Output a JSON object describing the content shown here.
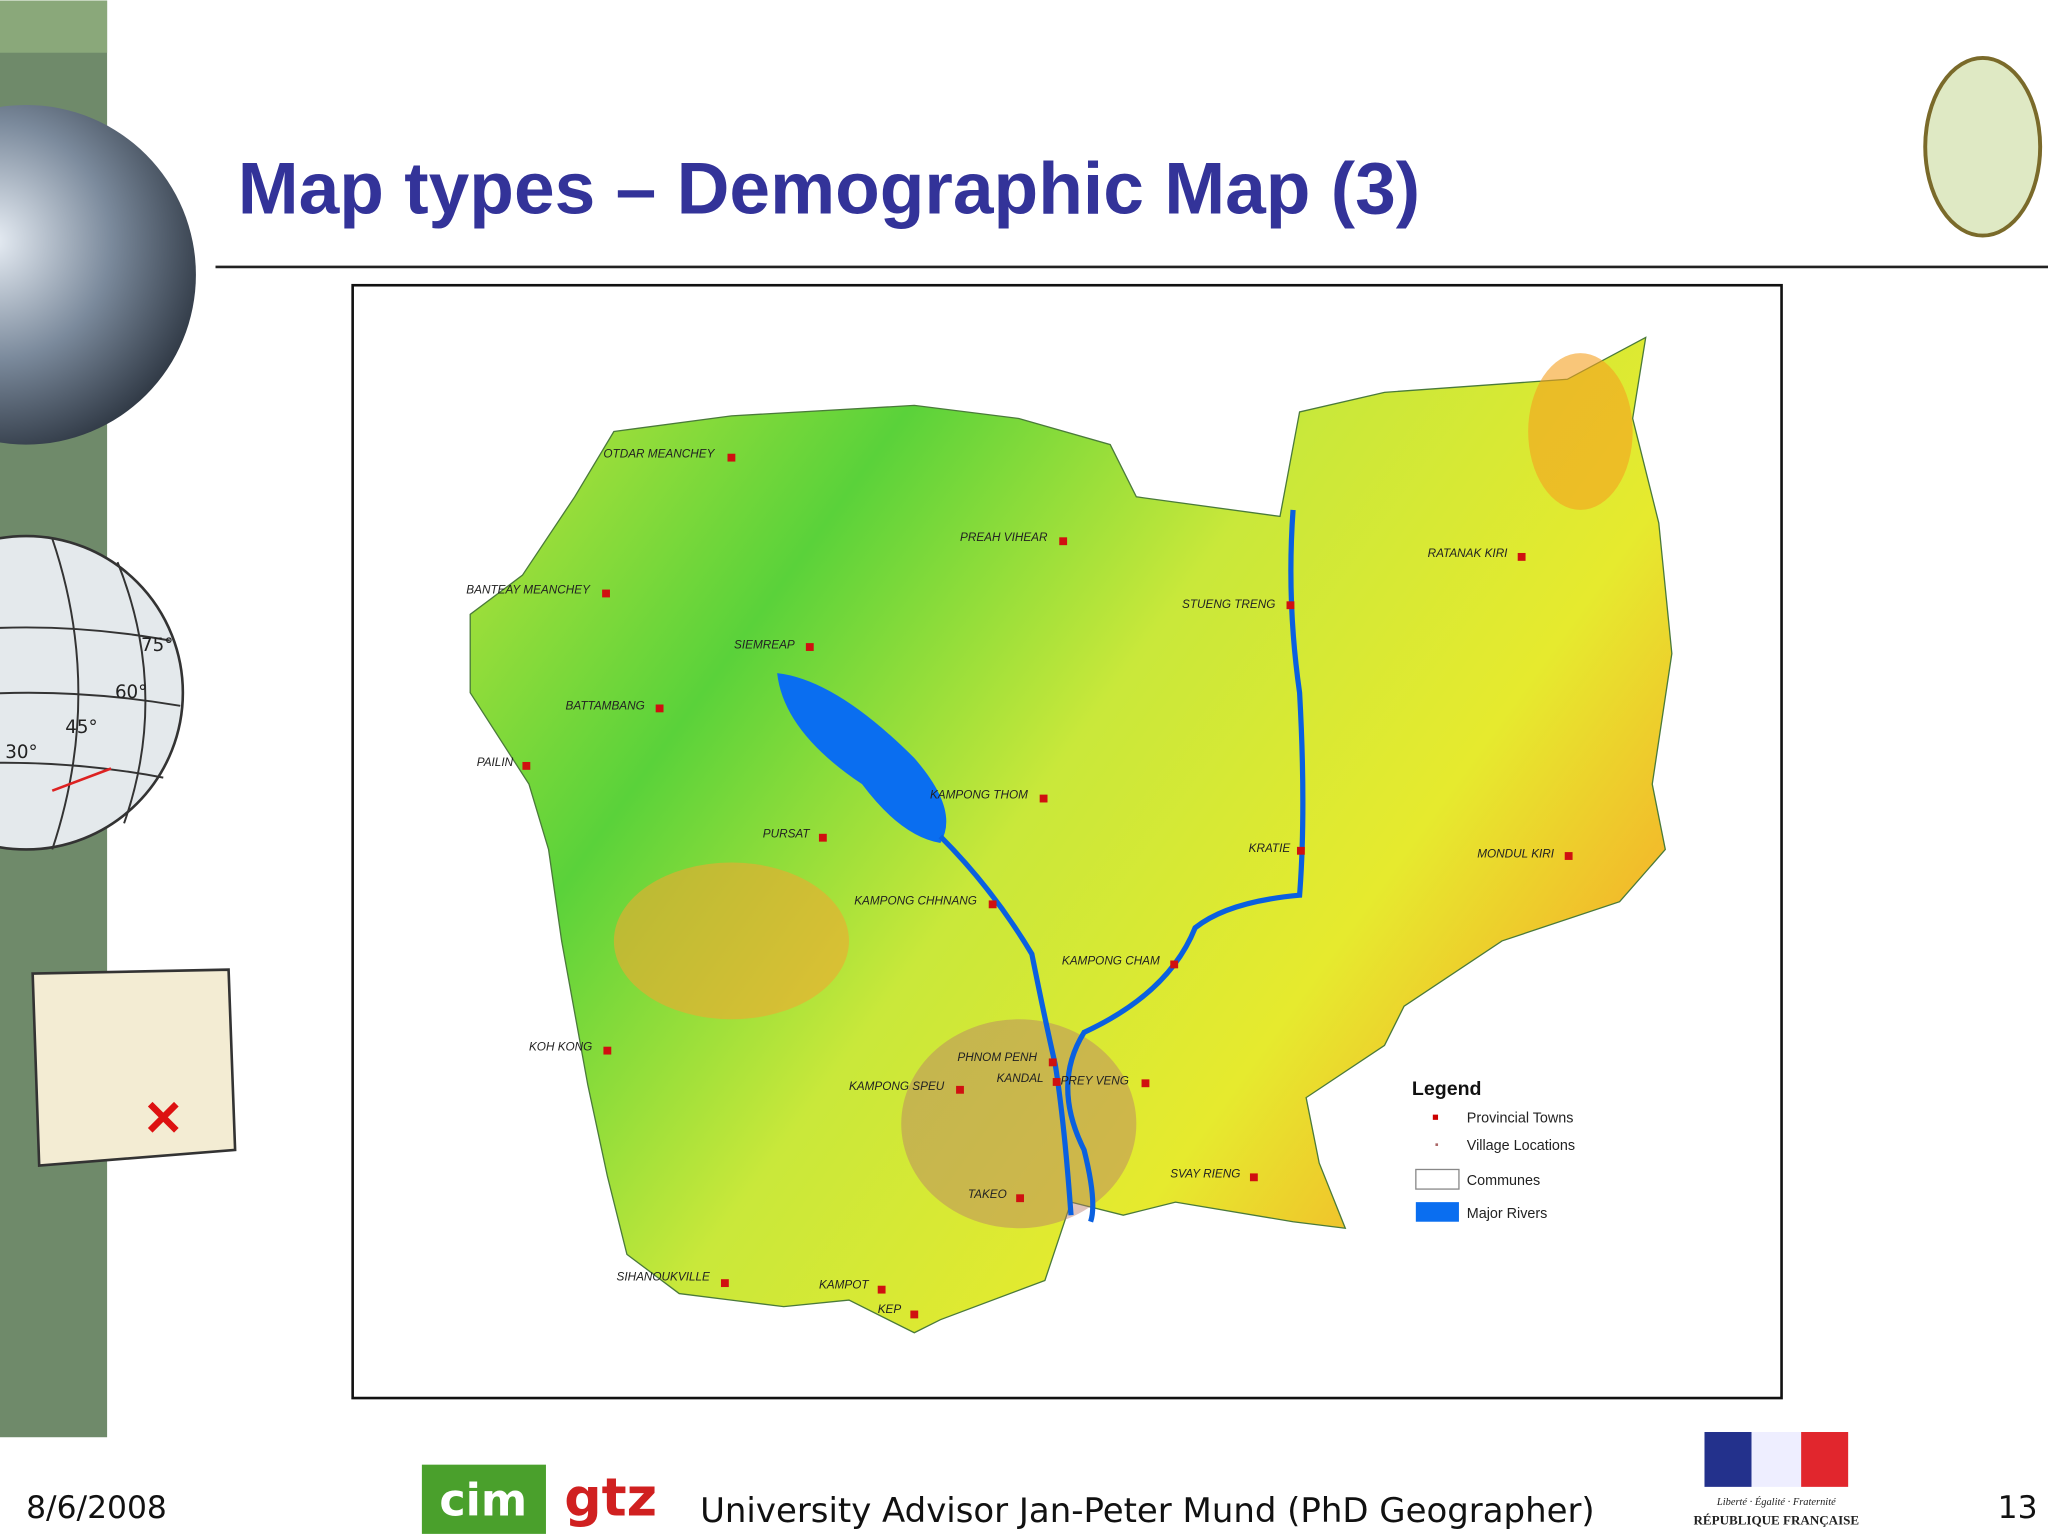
{
  "header": {
    "title": "Map types – Demographic Map (3)"
  },
  "decor": {
    "globe_labels": [
      "75°",
      "60°",
      "45°",
      "30°"
    ]
  },
  "map": {
    "labels": [
      "OTDAR MEANCHEY",
      "PREAH VIHEAR",
      "BANTEAY MEANCHEY",
      "STUENG TRENG",
      "RATANAK KIRI",
      "SIEMREAP",
      "BATTAMBANG",
      "PAILIN",
      "KAMPONG THOM",
      "PURSAT",
      "KRATIE",
      "MONDUL KIRI",
      "KAMPONG CHHNANG",
      "KAMPONG CHAM",
      "KOH KONG",
      "PHNOM PENH",
      "KAMPONG SPEU",
      "KANDAL",
      "PREY VENG",
      "SVAY RIENG",
      "TAKEO",
      "SIHANOUKVILLE",
      "KAMPOT",
      "KEP"
    ],
    "legend": {
      "title": "Legend",
      "items": [
        "Provincial Towns",
        "Village Locations",
        "Communes",
        "Major Rivers"
      ]
    }
  },
  "footer": {
    "date": "8/6/2008",
    "logos": [
      "cim",
      "gtz"
    ],
    "advisor": "University Advisor Jan-Peter Mund (PhD Geographer)",
    "motto": "Liberté · Égalité · Fraternité",
    "republic": "RÉPUBLIQUE FRANÇAISE",
    "page": "13"
  }
}
